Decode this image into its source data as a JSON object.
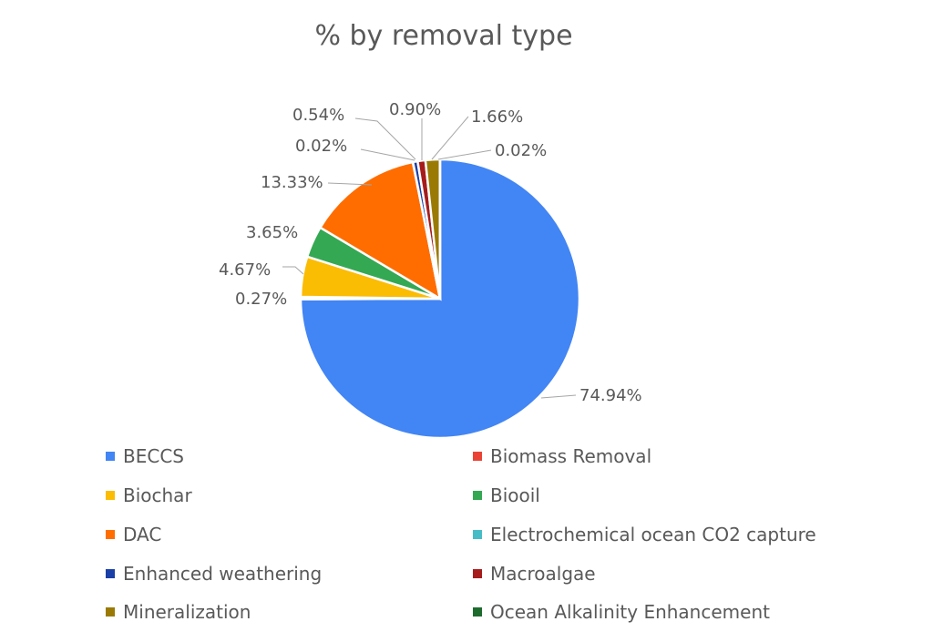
{
  "chart_data": {
    "type": "pie",
    "title": "% by removal type",
    "unit": "%",
    "slices": [
      {
        "name": "BECCS",
        "value": 74.94,
        "label": "74.94%",
        "color": "#4285F4"
      },
      {
        "name": "Biomass Removal",
        "value": 0.27,
        "label": "0.27%",
        "color": "#EA4335"
      },
      {
        "name": "Biochar",
        "value": 4.67,
        "label": "4.67%",
        "color": "#FBBC04"
      },
      {
        "name": "Biooil",
        "value": 3.65,
        "label": "3.65%",
        "color": "#34A853"
      },
      {
        "name": "DAC",
        "value": 13.33,
        "label": "13.33%",
        "color": "#FF6D01"
      },
      {
        "name": "Electrochemical ocean CO2 capture",
        "value": 0.02,
        "label": "0.02%",
        "color": "#46BDC6"
      },
      {
        "name": "Enhanced weathering",
        "value": 0.54,
        "label": "0.54%",
        "color": "#1A3FA6"
      },
      {
        "name": "Macroalgae",
        "value": 0.9,
        "label": "0.90%",
        "color": "#A61C1C"
      },
      {
        "name": "Mineralization",
        "value": 1.66,
        "label": "1.66%",
        "color": "#9A7A05"
      },
      {
        "name": "Ocean Alkalinity Enhancement",
        "value": 0.02,
        "label": "0.02%",
        "color": "#1E6B2E"
      }
    ],
    "start_angle": "12 o'clock",
    "direction": "clockwise",
    "legend_position": "bottom"
  }
}
